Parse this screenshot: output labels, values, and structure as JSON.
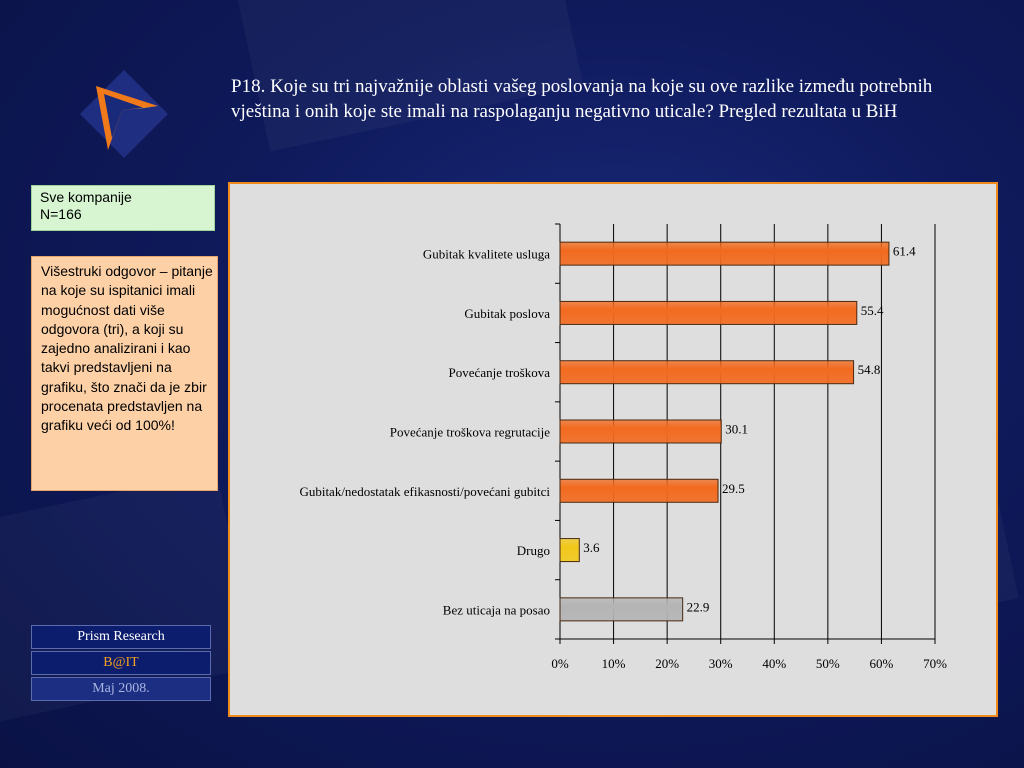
{
  "slide": {
    "title": "P18. Koje su tri najvažnije oblasti vašeg poslovanja na koje su ove razlike između potrebnih vještina i onih koje ste imali na raspolaganju negativno uticale? Pregled rezultata u BiH",
    "sample_line1": "Sve kompanije",
    "sample_line2": "N=166",
    "note": "Višestruki odgovor – pitanje na koje su ispitanici imali mogućnost dati više odgovora (tri), a koji su zajedno analizirani i kao takvi predstavljeni na grafiku, što znači da je zbir procenata predstavljen na grafiku veći od 100%!",
    "footer_org": "Prism Research",
    "footer_project": "B@IT",
    "footer_date": "Maj 2008."
  },
  "colors": {
    "bar_orange": "#f26a1f",
    "bar_yellow": "#f2c81a",
    "bar_gray": "#b4b4b4",
    "frame_border": "#f08a1a",
    "background": "#0f1a5c"
  },
  "chart_data": {
    "type": "bar",
    "orientation": "horizontal",
    "categories": [
      "Gubitak kvalitete usluga",
      "Gubitak poslova",
      "Povećanje troškova",
      "Povećanje troškova regrutacije",
      "Gubitak/nedostatak efikasnosti/povećani gubitci",
      "Drugo",
      "Bez uticaja na posao"
    ],
    "values": [
      61.4,
      55.4,
      54.8,
      30.1,
      29.5,
      3.6,
      22.9
    ],
    "value_labels": [
      "61.4",
      "55.4",
      "54.8",
      "30.1",
      "29.5",
      "3.6",
      "22.9"
    ],
    "bar_colors": [
      "orange",
      "orange",
      "orange",
      "orange",
      "orange",
      "yellow",
      "gray"
    ],
    "xlim": [
      0,
      70
    ],
    "xticks": [
      0,
      10,
      20,
      30,
      40,
      50,
      60,
      70
    ],
    "xtick_labels": [
      "0%",
      "10%",
      "20%",
      "30%",
      "40%",
      "50%",
      "60%",
      "70%"
    ],
    "grid": "vertical",
    "title": "",
    "xlabel": "",
    "ylabel": ""
  }
}
